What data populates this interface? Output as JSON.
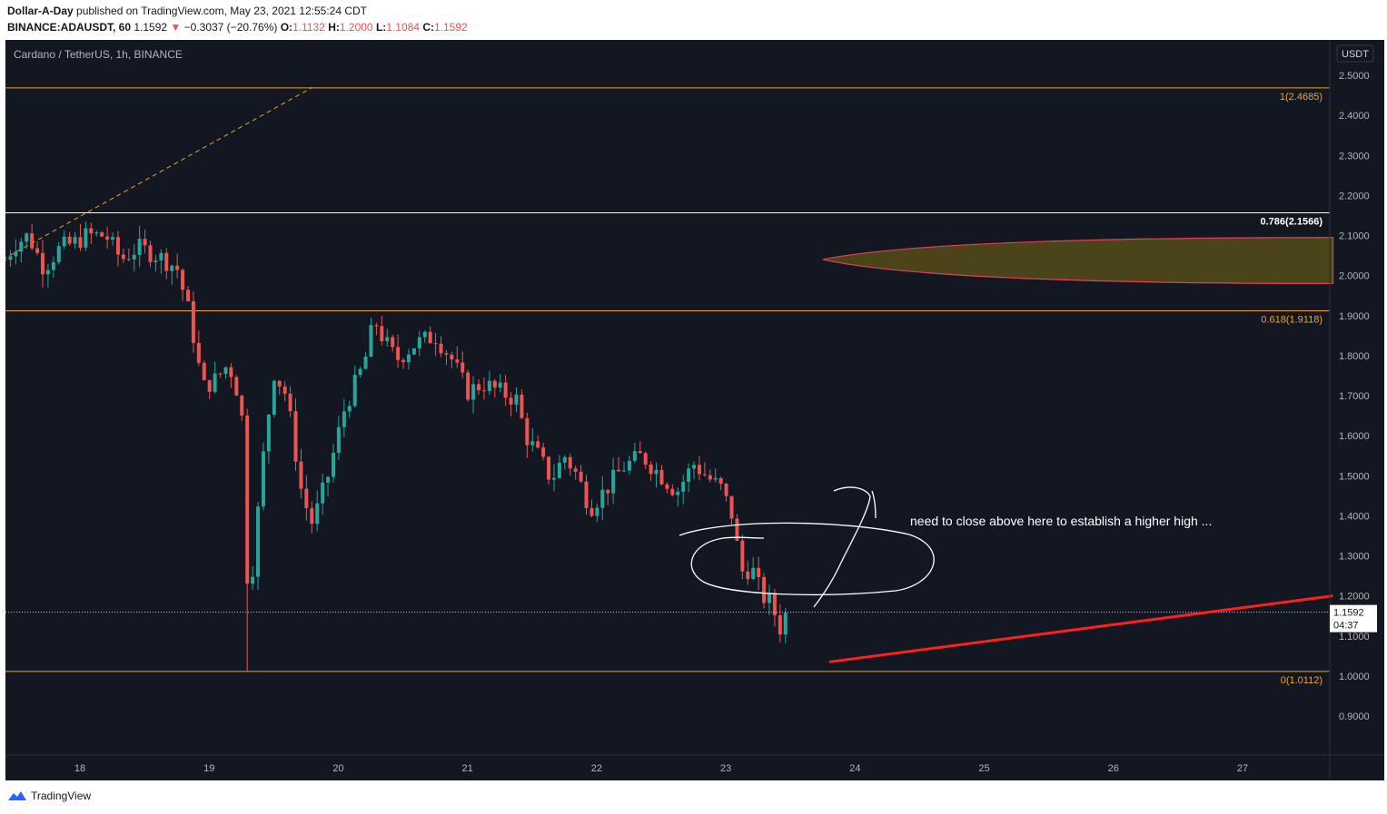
{
  "header": {
    "author": "Dollar-A-Day",
    "published": "published on TradingView.com, May 23, 2021 12:55:24 CDT",
    "symbol": "BINANCE:ADAUSDT, 60",
    "price": "1.1592",
    "change": "−0.3037 (−20.76%)",
    "o_label": "O:",
    "o_value": "1.1132",
    "h_label": "H:",
    "h_value": "1.2000",
    "l_label": "L:",
    "l_value": "1.1084",
    "c_label": "C:",
    "c_value": "1.1592"
  },
  "chart_title": "Cardano / TetherUS, 1h, BINANCE",
  "currency": "USDT",
  "price_label": "1.1592",
  "countdown": "04:37",
  "annotation": "need to close above here to establish a higher high ...",
  "footer": {
    "brand": "TradingView"
  },
  "colors": {
    "background": "#131722",
    "up": "#26a69a",
    "down": "#ef5350",
    "fib_orange": "#f0a229",
    "fib_white": "#d1d4dc",
    "trendline_red": "#ff1f1f",
    "zone_fill": "#4a4418"
  },
  "chart_data": {
    "type": "candlestick",
    "title": "Cardano / TetherUS, 1h, BINANCE",
    "y_axis": {
      "ylim": [
        0.83,
        2.54
      ],
      "ticks": [
        0.9,
        1.0,
        1.1,
        1.2,
        1.3,
        1.4,
        1.5,
        1.6,
        1.7,
        1.8,
        1.9,
        2.0,
        2.1,
        2.2,
        2.3,
        2.4,
        2.5
      ],
      "tick_labels": [
        "0.9000",
        "1.0000",
        "1.1000",
        "1.2000",
        "1.3000",
        "1.4000",
        "1.5000",
        "1.6000",
        "1.7000",
        "1.8000",
        "1.9000",
        "2.0000",
        "2.1000",
        "2.2000",
        "2.3000",
        "2.4000",
        "2.5000"
      ]
    },
    "x_axis": {
      "xlim": [
        17.4,
        27.7
      ],
      "ticks": [
        18,
        19,
        20,
        21,
        22,
        23,
        24,
        25,
        26,
        27
      ],
      "tick_labels": [
        "18",
        "19",
        "20",
        "21",
        "22",
        "23",
        "24",
        "25",
        "26",
        "27"
      ]
    },
    "fib_levels": [
      {
        "label": "1(2.4685)",
        "value": 2.4685,
        "color": "orange"
      },
      {
        "label": "0.786(2.1566)",
        "value": 2.1566,
        "color": "white"
      },
      {
        "label": "0.618(1.9118)",
        "value": 1.9118,
        "color": "orange"
      },
      {
        "label": "0(1.0112)",
        "value": 1.0112,
        "color": "orange"
      }
    ],
    "last_price": 1.1592,
    "trendline": {
      "from": [
        23.8,
        1.035
      ],
      "to": [
        27.7,
        1.2
      ]
    },
    "dashed_fib_line": {
      "from": [
        17.4,
        2.04
      ],
      "to": [
        19.8,
        2.47
      ]
    },
    "zone": {
      "x_start": 23.75,
      "x_end": 27.7,
      "upper": [
        2.04,
        2.095
      ],
      "lower": [
        2.04,
        1.98
      ]
    },
    "keypoints": [
      [
        17.42,
        2.04
      ],
      [
        17.5,
        2.08
      ],
      [
        17.6,
        2.1
      ],
      [
        17.72,
        2.02
      ],
      [
        17.85,
        2.07
      ],
      [
        17.95,
        2.08
      ],
      [
        18.05,
        2.1
      ],
      [
        18.2,
        2.1
      ],
      [
        18.32,
        2.04
      ],
      [
        18.45,
        2.07
      ],
      [
        18.6,
        2.05
      ],
      [
        18.75,
        2.02
      ],
      [
        18.85,
        1.9
      ],
      [
        18.95,
        1.72
      ],
      [
        19.05,
        1.74
      ],
      [
        19.15,
        1.78
      ],
      [
        19.25,
        1.68
      ],
      [
        19.29,
        1.25
      ],
      [
        19.33,
        1.25
      ],
      [
        19.42,
        1.55
      ],
      [
        19.5,
        1.76
      ],
      [
        19.6,
        1.7
      ],
      [
        19.72,
        1.45
      ],
      [
        19.8,
        1.38
      ],
      [
        19.92,
        1.5
      ],
      [
        20.05,
        1.67
      ],
      [
        20.2,
        1.78
      ],
      [
        20.28,
        1.89
      ],
      [
        20.35,
        1.84
      ],
      [
        20.45,
        1.79
      ],
      [
        20.6,
        1.83
      ],
      [
        20.75,
        1.85
      ],
      [
        20.88,
        1.79
      ],
      [
        21.0,
        1.71
      ],
      [
        21.12,
        1.73
      ],
      [
        21.25,
        1.71
      ],
      [
        21.38,
        1.69
      ],
      [
        21.45,
        1.6
      ],
      [
        21.55,
        1.55
      ],
      [
        21.65,
        1.49
      ],
      [
        21.75,
        1.55
      ],
      [
        21.85,
        1.5
      ],
      [
        21.95,
        1.42
      ],
      [
        22.08,
        1.47
      ],
      [
        22.2,
        1.52
      ],
      [
        22.35,
        1.55
      ],
      [
        22.5,
        1.5
      ],
      [
        22.62,
        1.46
      ],
      [
        22.75,
        1.53
      ],
      [
        22.88,
        1.49
      ],
      [
        22.96,
        1.47
      ],
      [
        23.05,
        1.4
      ],
      [
        23.12,
        1.26
      ],
      [
        23.2,
        1.27
      ],
      [
        23.28,
        1.2
      ],
      [
        23.35,
        1.18
      ],
      [
        23.42,
        1.12
      ],
      [
        23.47,
        1.16
      ]
    ]
  }
}
